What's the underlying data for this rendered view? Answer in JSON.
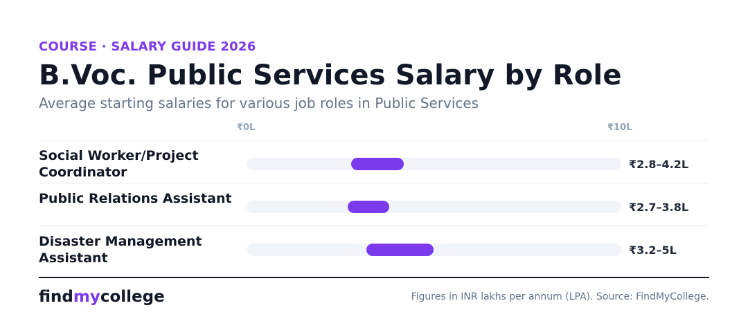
{
  "header": {
    "eyebrow": "COURSE · SALARY GUIDE 2026",
    "title": "B.Voc. Public Services Salary by Role",
    "subtitle": "Average starting salaries for various job roles in Public Services"
  },
  "colors": {
    "accent": "#7c3aed",
    "track": "#f1f5f9",
    "text_dark": "#111827",
    "text_muted": "#64748b"
  },
  "chart_data": {
    "type": "bar",
    "orientation": "horizontal-range",
    "xlim": [
      0,
      10
    ],
    "x_ticks": [
      "₹0L",
      "₹10L"
    ],
    "categories": [
      "Social Worker/Project Coordinator",
      "Public Relations Assistant",
      "Disaster Management Assistant"
    ],
    "ranges": [
      {
        "min": 2.8,
        "max": 4.2,
        "label": "₹2.8–4.2L"
      },
      {
        "min": 2.7,
        "max": 3.8,
        "label": "₹2.7–3.8L"
      },
      {
        "min": 3.2,
        "max": 5.0,
        "label": "₹3.2–5L"
      }
    ],
    "unit": "INR lakhs per annum (LPA)"
  },
  "footer": {
    "brand_a": "find",
    "brand_b": "my",
    "brand_c": "college",
    "source": "Figures in INR lakhs per annum (LPA). Source: FindMyCollege."
  }
}
